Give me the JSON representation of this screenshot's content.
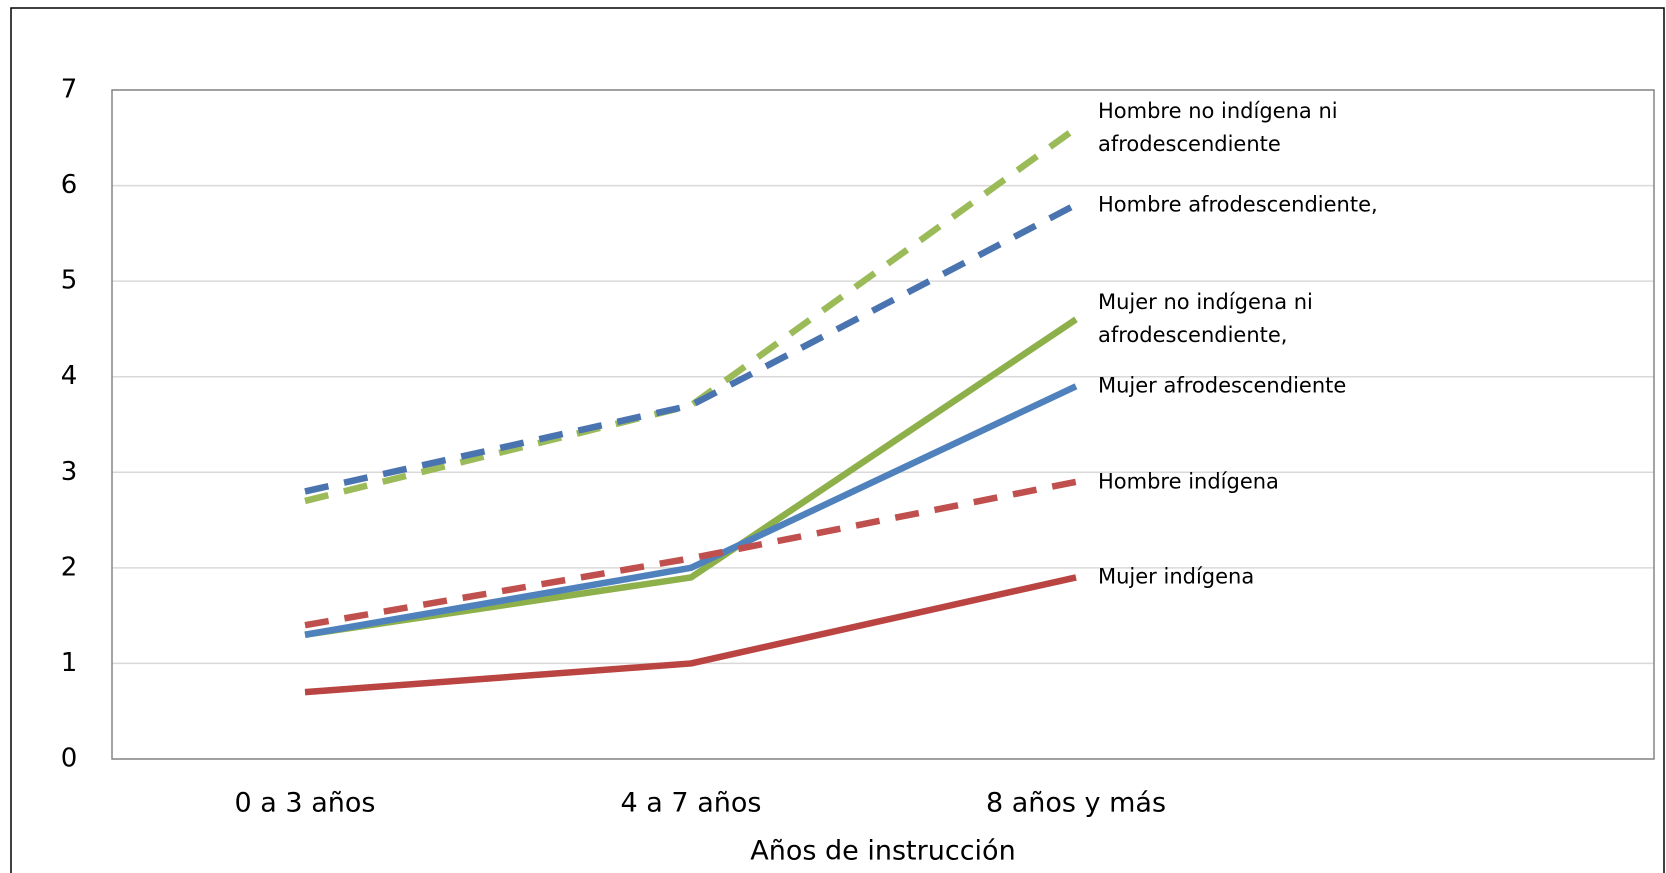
{
  "chart_data": {
    "type": "line",
    "x_label": "Años de instrucción",
    "categories": [
      "0 a 3 años",
      "4 a 7 años",
      "8 años y más"
    ],
    "ylim": [
      0,
      7
    ],
    "yticks": [
      0,
      1,
      2,
      3,
      4,
      5,
      6,
      7
    ],
    "grid": true,
    "series": [
      {
        "name": "Hombre no indígena ni afrodescendiente",
        "color": "#9bbb59",
        "dashed": true,
        "values": [
          2.7,
          3.7,
          6.6
        ]
      },
      {
        "name": "Hombre afrodescendiente,",
        "color": "#4a74b0",
        "dashed": true,
        "values": [
          2.8,
          3.7,
          5.8
        ]
      },
      {
        "name": "Mujer no indígena ni afrodescendiente,",
        "color": "#8db04a",
        "dashed": false,
        "values": [
          1.3,
          1.9,
          4.6
        ]
      },
      {
        "name": "Mujer afrodescendiente",
        "color": "#4f81bd",
        "dashed": false,
        "values": [
          1.3,
          2.0,
          3.9
        ]
      },
      {
        "name": "Hombre indígena",
        "color": "#c0504d",
        "dashed": true,
        "values": [
          1.4,
          2.1,
          2.9
        ]
      },
      {
        "name": "Mujer indígena",
        "color": "#b94441",
        "dashed": false,
        "values": [
          0.7,
          1.0,
          1.9
        ]
      }
    ]
  }
}
